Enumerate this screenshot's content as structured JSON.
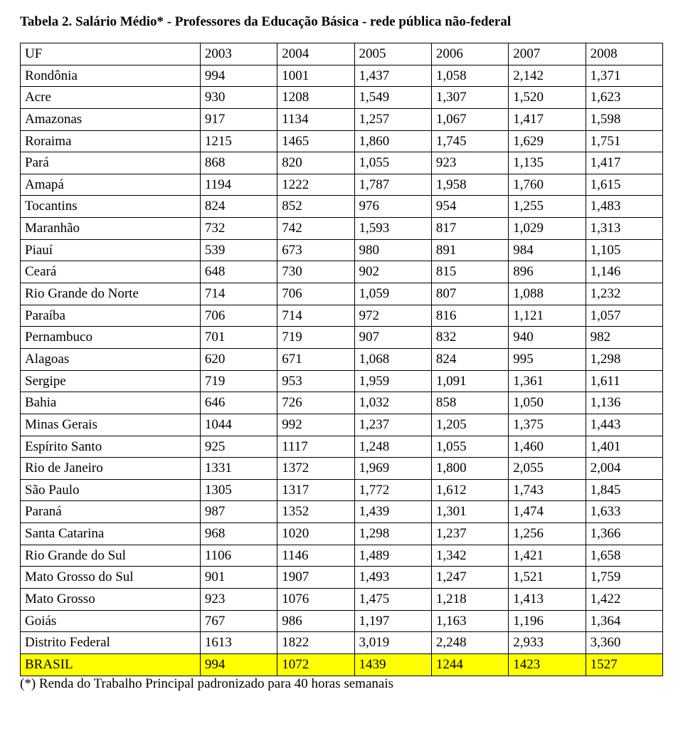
{
  "title": "Tabela 2. Salário Médio* - Professores da Educação Básica - rede pública não-federal",
  "footnote": "(*) Renda do Trabalho Principal padronizado para 40 horas semanais",
  "columns": [
    "UF",
    "2003",
    "2004",
    "2005",
    "2006",
    "2007",
    "2008"
  ],
  "rows": [
    {
      "uf": "Rondônia",
      "v": [
        "994",
        "1001",
        "1,437",
        "1,058",
        "2,142",
        "1,371"
      ]
    },
    {
      "uf": "Acre",
      "v": [
        "930",
        "1208",
        "1,549",
        "1,307",
        "1,520",
        "1,623"
      ]
    },
    {
      "uf": "Amazonas",
      "v": [
        "917",
        "1134",
        "1,257",
        "1,067",
        "1,417",
        "1,598"
      ]
    },
    {
      "uf": "Roraima",
      "v": [
        "1215",
        "1465",
        "1,860",
        "1,745",
        "1,629",
        "1,751"
      ]
    },
    {
      "uf": "Pará",
      "v": [
        "868",
        "820",
        "1,055",
        "923",
        "1,135",
        "1,417"
      ]
    },
    {
      "uf": "Amapá",
      "v": [
        "1194",
        "1222",
        "1,787",
        "1,958",
        "1,760",
        "1,615"
      ]
    },
    {
      "uf": "Tocantins",
      "v": [
        "824",
        "852",
        "976",
        "954",
        "1,255",
        "1,483"
      ]
    },
    {
      "uf": "Maranhão",
      "v": [
        "732",
        "742",
        "1,593",
        "817",
        "1,029",
        "1,313"
      ]
    },
    {
      "uf": "Piauí",
      "v": [
        "539",
        "673",
        "980",
        "891",
        "984",
        "1,105"
      ]
    },
    {
      "uf": "Ceará",
      "v": [
        "648",
        "730",
        "902",
        "815",
        "896",
        "1,146"
      ]
    },
    {
      "uf": "Rio Grande do Norte",
      "v": [
        "714",
        "706",
        "1,059",
        "807",
        "1,088",
        "1,232"
      ]
    },
    {
      "uf": "Paraíba",
      "v": [
        "706",
        "714",
        "972",
        "816",
        "1,121",
        "1,057"
      ]
    },
    {
      "uf": "Pernambuco",
      "v": [
        "701",
        "719",
        "907",
        "832",
        "940",
        "982"
      ]
    },
    {
      "uf": "Alagoas",
      "v": [
        "620",
        "671",
        "1,068",
        "824",
        "995",
        "1,298"
      ]
    },
    {
      "uf": "Sergipe",
      "v": [
        "719",
        "953",
        "1,959",
        "1,091",
        "1,361",
        "1,611"
      ]
    },
    {
      "uf": "Bahia",
      "v": [
        "646",
        "726",
        "1,032",
        "858",
        "1,050",
        "1,136"
      ]
    },
    {
      "uf": "Minas Gerais",
      "v": [
        "1044",
        "992",
        "1,237",
        "1,205",
        "1,375",
        "1,443"
      ]
    },
    {
      "uf": "Espírito Santo",
      "v": [
        "925",
        "1117",
        "1,248",
        "1,055",
        "1,460",
        "1,401"
      ]
    },
    {
      "uf": "Rio de Janeiro",
      "v": [
        "1331",
        "1372",
        "1,969",
        "1,800",
        "2,055",
        "2,004"
      ]
    },
    {
      "uf": "São Paulo",
      "v": [
        "1305",
        "1317",
        "1,772",
        "1,612",
        "1,743",
        "1,845"
      ]
    },
    {
      "uf": "Paraná",
      "v": [
        "987",
        "1352",
        "1,439",
        "1,301",
        "1,474",
        "1,633"
      ]
    },
    {
      "uf": "Santa Catarina",
      "v": [
        "968",
        "1020",
        "1,298",
        "1,237",
        "1,256",
        "1,366"
      ]
    },
    {
      "uf": "Rio Grande do Sul",
      "v": [
        "1106",
        "1146",
        "1,489",
        "1,342",
        "1,421",
        "1,658"
      ]
    },
    {
      "uf": "Mato Grosso do Sul",
      "v": [
        "901",
        "1907",
        "1,493",
        "1,247",
        "1,521",
        "1,759"
      ]
    },
    {
      "uf": "Mato Grosso",
      "v": [
        "923",
        "1076",
        "1,475",
        "1,218",
        "1,413",
        "1,422"
      ]
    },
    {
      "uf": "Goiás",
      "v": [
        "767",
        "986",
        "1,197",
        "1,163",
        "1,196",
        "1,364"
      ]
    },
    {
      "uf": "Distrito Federal",
      "v": [
        "1613",
        "1822",
        "3,019",
        "2,248",
        "2,933",
        "3,360"
      ]
    },
    {
      "uf": "BRASIL",
      "v": [
        "994",
        "1072",
        "1439",
        "1244",
        "1423",
        "1527"
      ],
      "highlight": true
    }
  ]
}
